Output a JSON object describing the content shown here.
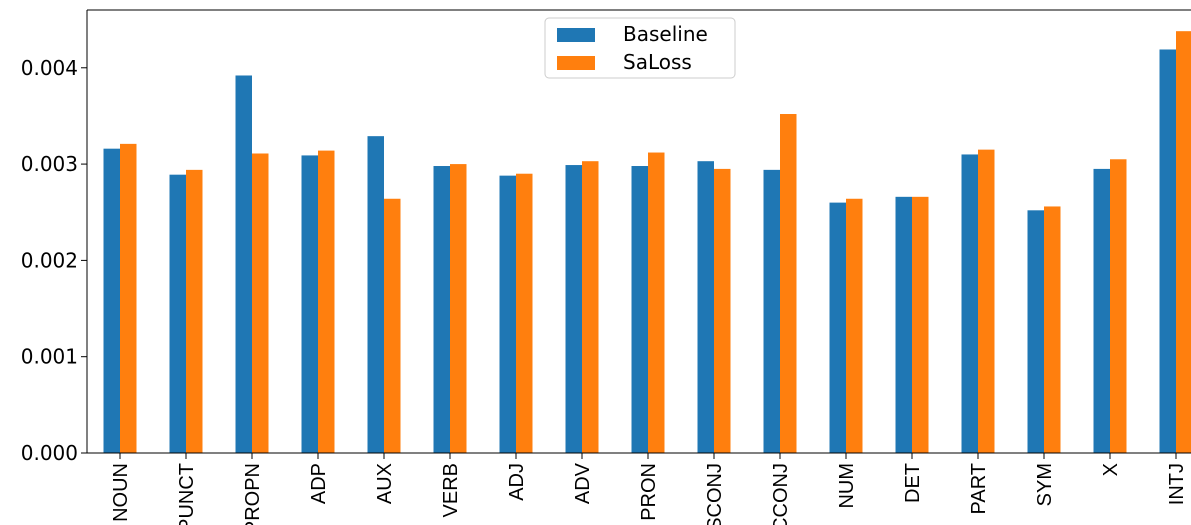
{
  "chart_data": {
    "type": "bar",
    "categories": [
      "NOUN",
      "PUNCT",
      "PROPN",
      "ADP",
      "AUX",
      "VERB",
      "ADJ",
      "ADV",
      "PRON",
      "SCONJ",
      "CCONJ",
      "NUM",
      "DET",
      "PART",
      "SYM",
      "X",
      "INTJ"
    ],
    "series": [
      {
        "name": "Baseline",
        "color": "#1f77b4",
        "values": [
          0.00316,
          0.00289,
          0.00392,
          0.00309,
          0.00329,
          0.00298,
          0.00288,
          0.00299,
          0.00298,
          0.00303,
          0.00294,
          0.0026,
          0.00266,
          0.0031,
          0.00252,
          0.00295,
          0.00419
        ]
      },
      {
        "name": "SaLoss",
        "color": "#ff7f0e",
        "values": [
          0.00321,
          0.00294,
          0.00311,
          0.00314,
          0.00264,
          0.003,
          0.0029,
          0.00303,
          0.00312,
          0.00295,
          0.00352,
          0.00264,
          0.00266,
          0.00315,
          0.00256,
          0.00305,
          0.00438
        ]
      }
    ],
    "ylim": [
      0,
      0.0046
    ],
    "yticks": [
      {
        "value": 0,
        "label": "0.000"
      },
      0.001,
      0.002,
      0.003,
      0.004
    ],
    "legend": "upper center"
  }
}
